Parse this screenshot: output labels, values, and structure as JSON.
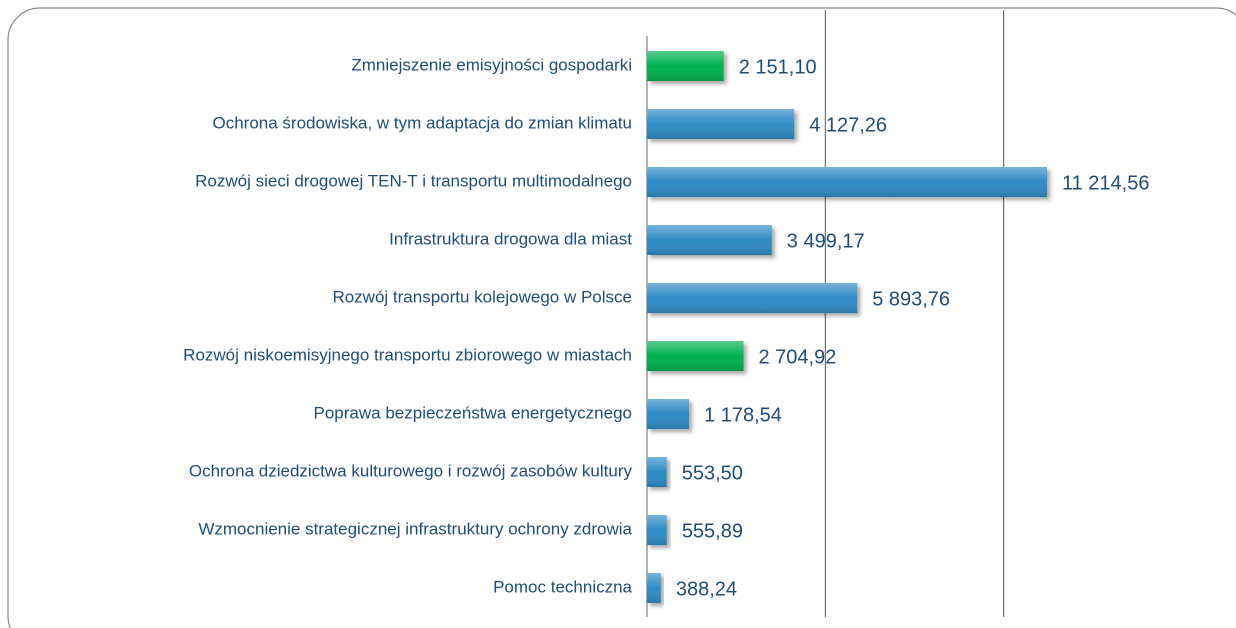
{
  "chart_data": {
    "type": "bar",
    "orientation": "horizontal",
    "categories": [
      "Zmniejszenie emisyjności gospodarki",
      "Ochrona środowiska, w tym adaptacja do zmian klimatu",
      "Rozwój sieci drogowej TEN-T i transportu multimodalnego",
      "Infrastruktura drogowa dla miast",
      "Rozwój transportu kolejowego w Polsce",
      "Rozwój niskoemisyjnego transportu zbiorowego w miastach",
      "Poprawa bezpieczeństwa energetycznego",
      "Ochrona dziedzictwa kulturowego i rozwój zasobów kultury",
      "Wzmocnienie strategicznej infrastruktury ochrony zdrowia",
      "Pomoc techniczna"
    ],
    "values": [
      2151.1,
      4127.26,
      11214.56,
      3499.17,
      5893.76,
      2704.92,
      1178.54,
      553.5,
      555.89,
      388.24
    ],
    "value_labels": [
      "2 151,10",
      "4 127,26",
      "11 214,56",
      "3 499,17",
      "5 893,76",
      "2 704,92",
      "1 178,54",
      "553,50",
      "555,89",
      "388,24"
    ],
    "colors": [
      "#00b050",
      "#2e8bc4",
      "#2e8bc4",
      "#2e8bc4",
      "#2e8bc4",
      "#00b050",
      "#2e8bc4",
      "#2e8bc4",
      "#2e8bc4",
      "#2e8bc4"
    ],
    "xlim": [
      0,
      15000
    ],
    "xticks": [
      0,
      5000,
      10000
    ],
    "grid": true
  }
}
